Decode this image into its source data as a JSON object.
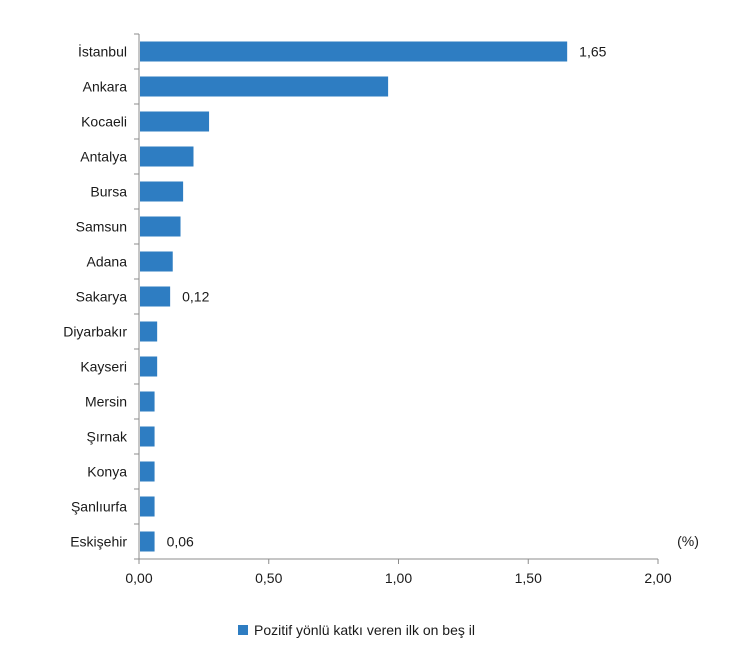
{
  "chart_data": {
    "type": "bar",
    "orientation": "horizontal",
    "categories": [
      "İstanbul",
      "Ankara",
      "Kocaeli",
      "Antalya",
      "Bursa",
      "Samsun",
      "Adana",
      "Sakarya",
      "Diyarbakır",
      "Kayseri",
      "Mersin",
      "Şırnak",
      "Konya",
      "Şanlıurfa",
      "Eskişehir"
    ],
    "series": [
      {
        "name": "Pozitif yönlü katkı veren ilk on beş il",
        "values": [
          1.65,
          0.96,
          0.27,
          0.21,
          0.17,
          0.16,
          0.13,
          0.12,
          0.07,
          0.07,
          0.06,
          0.06,
          0.06,
          0.06,
          0.06
        ],
        "color": "#2E7DC2"
      }
    ],
    "data_labels": [
      {
        "category": "İstanbul",
        "text": "1,65"
      },
      {
        "category": "Sakarya",
        "text": "0,12"
      },
      {
        "category": "Eskişehir",
        "text": "0,06"
      }
    ],
    "xlim": [
      0,
      2.0
    ],
    "x_ticks": [
      "0,00",
      "0,50",
      "1,00",
      "1,50",
      "2,00"
    ],
    "unit_label": "(%)",
    "grid": false,
    "legend_position": "bottom"
  }
}
